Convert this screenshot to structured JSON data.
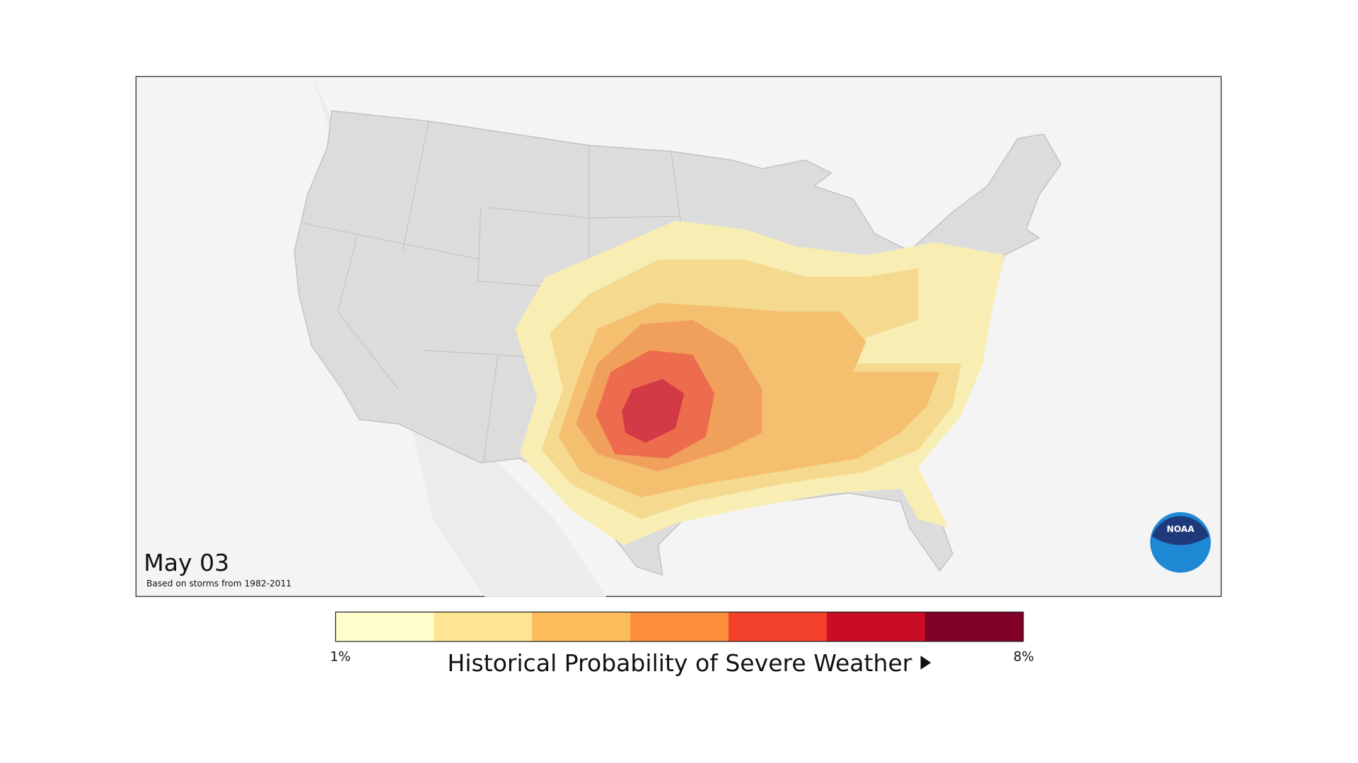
{
  "map": {
    "date": "May 03",
    "note": "Based on storms from 1982-2011",
    "logo": "NOAA"
  },
  "legend": {
    "title": "Historical Probability of Severe Weather",
    "min_label": "1%",
    "max_label": "8%",
    "colors": [
      "#ffffcc",
      "#fee591",
      "#fdbd5c",
      "#fd8d3c",
      "#f3402a",
      "#c90d25",
      "#800026"
    ]
  }
}
